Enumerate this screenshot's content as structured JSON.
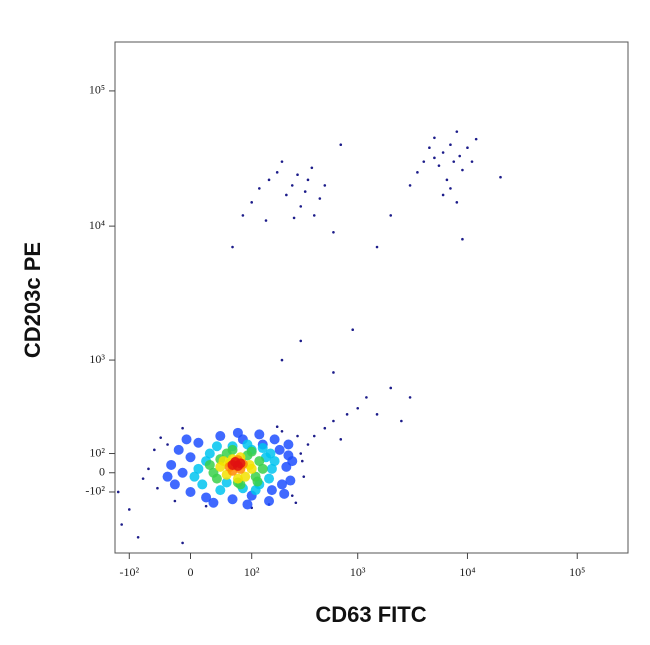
{
  "chart_data": {
    "type": "scatter",
    "x_label": "CD63 FITC",
    "y_label": "CD203c PE",
    "scale": "biexponential",
    "xlim": [
      -140,
      290000
    ],
    "ylim": [
      -550,
      230000
    ],
    "xticks": [
      {
        "value": -100,
        "label": "-10²"
      },
      0,
      {
        "value": 100,
        "label": "10²"
      },
      {
        "value": 1000,
        "label": "10³"
      },
      {
        "value": 10000,
        "label": "10⁴"
      },
      {
        "value": 100000,
        "label": "10⁵"
      }
    ],
    "yticks": [
      {
        "value": -100,
        "label": "-10²"
      },
      0,
      {
        "value": 100,
        "label": "10²"
      },
      {
        "value": 1000,
        "label": "10³"
      },
      {
        "value": 10000,
        "label": "10⁴"
      },
      {
        "value": 100000,
        "label": "10⁵"
      }
    ],
    "series": [
      {
        "color": "#1c1c8a",
        "x": [
          -60,
          -45,
          -30,
          300,
          320,
          280,
          -20,
          150,
          200,
          -50,
          310,
          100,
          -10,
          250,
          -70,
          180,
          350,
          20,
          270,
          -40,
          400,
          500,
          600,
          700,
          800,
          1000,
          1200,
          1500,
          2000,
          3000,
          2500,
          600,
          300,
          200,
          900,
          -120,
          -100,
          -130,
          -80,
          -10,
          80,
          100,
          120,
          150,
          180,
          200,
          220,
          250,
          280,
          300,
          330,
          350,
          400,
          450,
          500,
          140,
          260,
          380,
          60,
          600,
          3000,
          3500,
          4000,
          4500,
          5000,
          5500,
          6000,
          6500,
          7000,
          7500,
          8000,
          8500,
          9000,
          10000,
          11000,
          6000,
          7000,
          8000,
          12000,
          5000,
          20000,
          2000,
          1500,
          700,
          9000
        ],
        "y": [
          20,
          -80,
          150,
          100,
          -20,
          200,
          -150,
          -170,
          230,
          120,
          60,
          -190,
          250,
          -120,
          -30,
          260,
          150,
          -180,
          -160,
          190,
          200,
          250,
          300,
          180,
          350,
          400,
          500,
          350,
          600,
          500,
          300,
          800,
          1400,
          1000,
          1700,
          -300,
          -200,
          -100,
          -400,
          -450,
          12000,
          15000,
          19000,
          22000,
          25000,
          30000,
          17000,
          20000,
          24000,
          14000,
          18000,
          22000,
          12000,
          16000,
          20000,
          11000,
          11500,
          27000,
          7000,
          9000,
          20000,
          25000,
          30000,
          38000,
          45000,
          28000,
          35000,
          22000,
          40000,
          30000,
          50000,
          33000,
          26000,
          38000,
          30000,
          17000,
          19000,
          15000,
          44000,
          32000,
          23000,
          12000,
          7000,
          40000,
          8000
        ]
      },
      {
        "color": "#1f4fff",
        "x": [
          -25,
          -20,
          -15,
          0,
          10,
          20,
          40,
          60,
          80,
          100,
          130,
          160,
          190,
          220,
          240,
          230,
          -10,
          200,
          0,
          120,
          30,
          70,
          170,
          210,
          -30,
          250,
          90,
          150,
          -5,
          230
        ],
        "y": [
          40,
          -60,
          120,
          -100,
          160,
          -130,
          200,
          -140,
          180,
          -120,
          150,
          -90,
          120,
          30,
          -40,
          90,
          0,
          -60,
          80,
          210,
          -160,
          220,
          180,
          -110,
          -20,
          60,
          -170,
          -150,
          180,
          150
        ]
      },
      {
        "color": "#00c4f0",
        "x": [
          10,
          15,
          25,
          40,
          60,
          80,
          100,
          120,
          140,
          160,
          150,
          20,
          170,
          130,
          50,
          35,
          110,
          5,
          90,
          155
        ],
        "y": [
          20,
          -60,
          100,
          -90,
          140,
          -80,
          120,
          -60,
          80,
          20,
          -30,
          60,
          60,
          130,
          -50,
          140,
          -90,
          -20,
          150,
          100
        ]
      },
      {
        "color": "#3ad04a",
        "x": [
          25,
          35,
          50,
          70,
          90,
          110,
          120,
          40,
          100,
          75,
          130,
          60,
          30,
          115
        ],
        "y": [
          40,
          -30,
          100,
          -50,
          90,
          -20,
          60,
          70,
          110,
          -60,
          20,
          120,
          0,
          -45
        ]
      },
      {
        "color": "#f2e200",
        "x": [
          40,
          50,
          60,
          75,
          85,
          95,
          70,
          55,
          100,
          45
        ],
        "y": [
          30,
          -10,
          70,
          80,
          -20,
          40,
          -30,
          50,
          20,
          60
        ]
      },
      {
        "color": "#ff8a00",
        "x": [
          55,
          65,
          75,
          60,
          80,
          70
        ],
        "y": [
          30,
          55,
          20,
          10,
          45,
          65
        ]
      },
      {
        "color": "#e01010",
        "x": [
          60,
          70,
          65,
          75
        ],
        "y": [
          40,
          35,
          55,
          48
        ]
      }
    ]
  }
}
